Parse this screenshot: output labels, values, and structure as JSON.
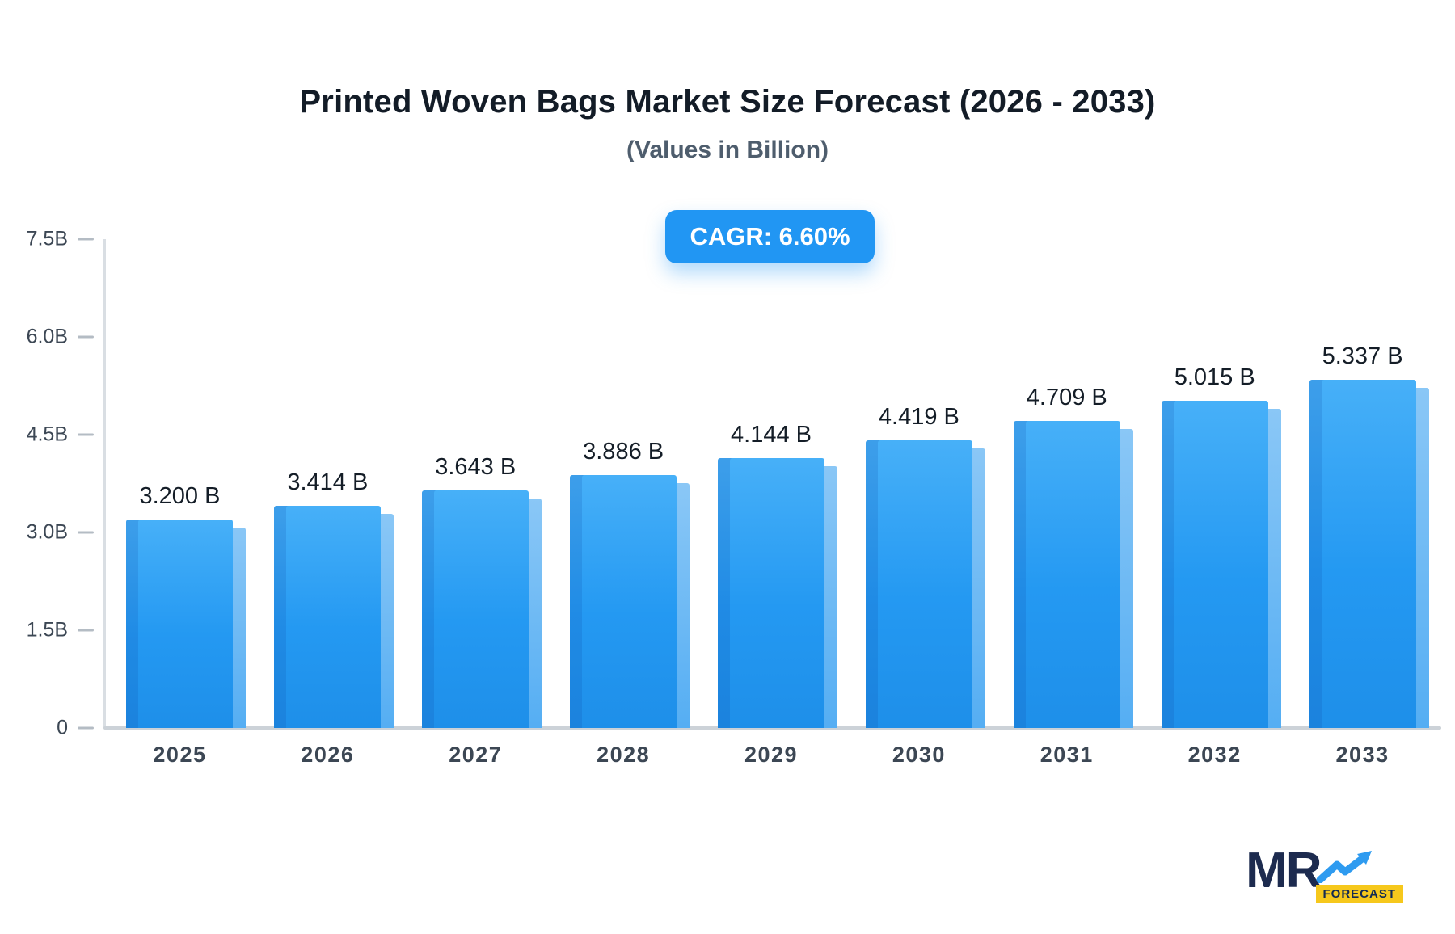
{
  "header": {
    "title": "Printed Woven Bags Market Size Forecast (2026 - 2033)",
    "subtitle": "(Values in Billion)",
    "cagr_label": "CAGR: 6.60%"
  },
  "chart_data": {
    "type": "bar",
    "title": "Printed Woven Bags Market Size Forecast (2026 - 2033)",
    "subtitle": "(Values in Billion)",
    "categories": [
      "2025",
      "2026",
      "2027",
      "2028",
      "2029",
      "2030",
      "2031",
      "2032",
      "2033"
    ],
    "values": [
      3.2,
      3.414,
      3.643,
      3.886,
      4.144,
      4.419,
      4.709,
      5.015,
      5.337
    ],
    "value_labels": [
      "3.200 B",
      "3.414 B",
      "3.643 B",
      "3.886 B",
      "4.144 B",
      "4.419 B",
      "4.709 B",
      "5.015 B",
      "5.337 B"
    ],
    "units": "Billion",
    "cagr": "6.60%",
    "xlabel": "",
    "ylabel": "",
    "ylim": [
      0,
      7.5
    ],
    "yticks": [
      0,
      1.5,
      3.0,
      4.5,
      6.0,
      7.5
    ],
    "ytick_labels": [
      "0",
      "1.5B",
      "3.0B",
      "4.5B",
      "6.0B",
      "7.5B"
    ],
    "grid": false,
    "legend": false,
    "bar_color": "#2196f3",
    "bar_side_color": "#6fbbf4",
    "bar_edge_color": "#1a76c8"
  },
  "colors": {
    "accent": "#2196f3",
    "badge_background": "#2196f3",
    "badge_text": "#ffffff",
    "axis_line": "#d9dee3",
    "tick_text": "#3c4754",
    "logo_navy": "#1d2b4f",
    "logo_yellow": "#f6c81c"
  },
  "logo": {
    "brand": "MR",
    "badge": "FORECAST"
  }
}
